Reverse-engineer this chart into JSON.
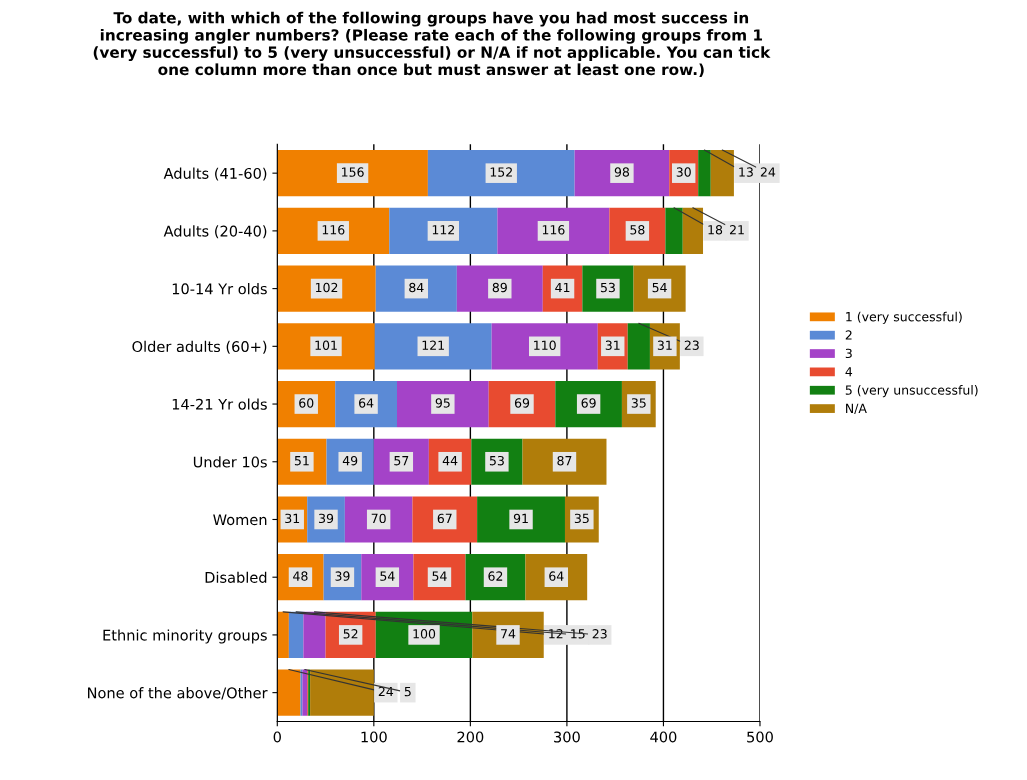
{
  "chart_data": {
    "type": "bar",
    "orientation": "horizontal",
    "stacked": true,
    "title": "To date, with which of the following groups have you had most success in\nincreasing angler numbers? (Please rate each of the following groups from 1\n(very successful) to 5 (very unsuccessful) or N/A if not applicable. You can tick\none column more than once but must answer at least one row.)",
    "categories": [
      "Adults (41-60)",
      "Adults (20-40)",
      "10-14 Yr olds",
      "Older adults (60+)",
      "14-21 Yr olds",
      "Under 10s",
      "Women",
      "Disabled",
      "Ethnic minority groups",
      "None of the above/Other"
    ],
    "series": [
      {
        "name": "1 (very successful)",
        "color": "#f08000",
        "values": [
          156,
          116,
          102,
          101,
          60,
          51,
          31,
          48,
          12,
          24
        ],
        "value_labels": [
          "156",
          "116",
          "102",
          "101",
          "60",
          "51",
          "31",
          "48",
          "12",
          "24"
        ]
      },
      {
        "name": "2",
        "color": "#5b8ad6",
        "values": [
          152,
          112,
          84,
          121,
          64,
          49,
          39,
          39,
          15,
          2
        ],
        "value_labels": [
          "152",
          "112",
          "84",
          "121",
          "64",
          "49",
          "39",
          "39",
          "15",
          null
        ]
      },
      {
        "name": "3",
        "color": "#a443c8",
        "values": [
          98,
          116,
          89,
          110,
          95,
          57,
          70,
          54,
          23,
          5
        ],
        "value_labels": [
          "98",
          "116",
          "89",
          "110",
          "95",
          "57",
          "70",
          "54",
          "23",
          "5"
        ]
      },
      {
        "name": "4",
        "color": "#e84b30",
        "values": [
          30,
          58,
          41,
          31,
          69,
          44,
          67,
          54,
          52,
          1
        ],
        "value_labels": [
          "30",
          "58",
          "41",
          "31",
          "69",
          "44",
          "67",
          "54",
          "52",
          null
        ]
      },
      {
        "name": "5 (very unsuccessful)",
        "color": "#128012",
        "values": [
          13,
          18,
          53,
          23,
          69,
          53,
          91,
          62,
          100,
          2
        ],
        "value_labels": [
          "13",
          "18",
          "53",
          "23",
          "69",
          "53",
          "91",
          "62",
          "100",
          null
        ]
      },
      {
        "name": "N/A",
        "color": "#b07d0a",
        "values": [
          24,
          21,
          54,
          31,
          35,
          87,
          35,
          64,
          74,
          66
        ],
        "value_labels": [
          "24",
          "21",
          "54",
          "31",
          "35",
          "87",
          "35",
          "64",
          "74",
          null
        ]
      }
    ],
    "xlim": [
      0,
      500
    ],
    "xticks": [
      0,
      100,
      200,
      300,
      400,
      500
    ],
    "grid": "x",
    "legend": "right"
  }
}
